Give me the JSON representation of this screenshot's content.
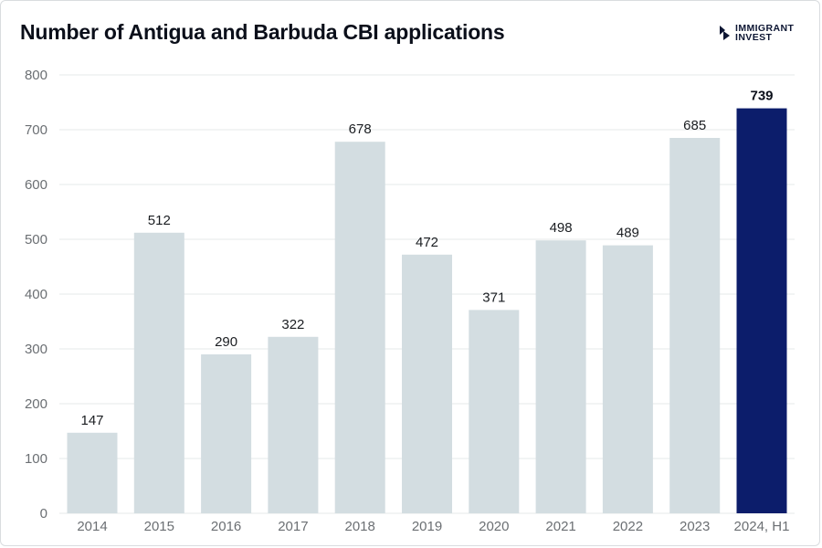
{
  "chart_data": {
    "type": "bar",
    "title": "Number of Antigua and Barbuda CBI applications",
    "categories": [
      "2014",
      "2015",
      "2016",
      "2017",
      "2018",
      "2019",
      "2020",
      "2021",
      "2022",
      "2023",
      "2024, H1"
    ],
    "values": [
      147,
      512,
      290,
      322,
      678,
      472,
      371,
      498,
      489,
      685,
      739
    ],
    "highlight_index": 10,
    "ylim": [
      0,
      800
    ],
    "yticks": [
      0,
      100,
      200,
      300,
      400,
      500,
      600,
      700,
      800
    ],
    "grid": true,
    "colors": {
      "bar": "#d3dde1",
      "highlight": "#0c1d6b",
      "grid": "#e6e8ea"
    }
  },
  "brand": {
    "line1": "IMMIGRANT",
    "line2": "INVEST",
    "icon": "chevron-logo-icon"
  }
}
